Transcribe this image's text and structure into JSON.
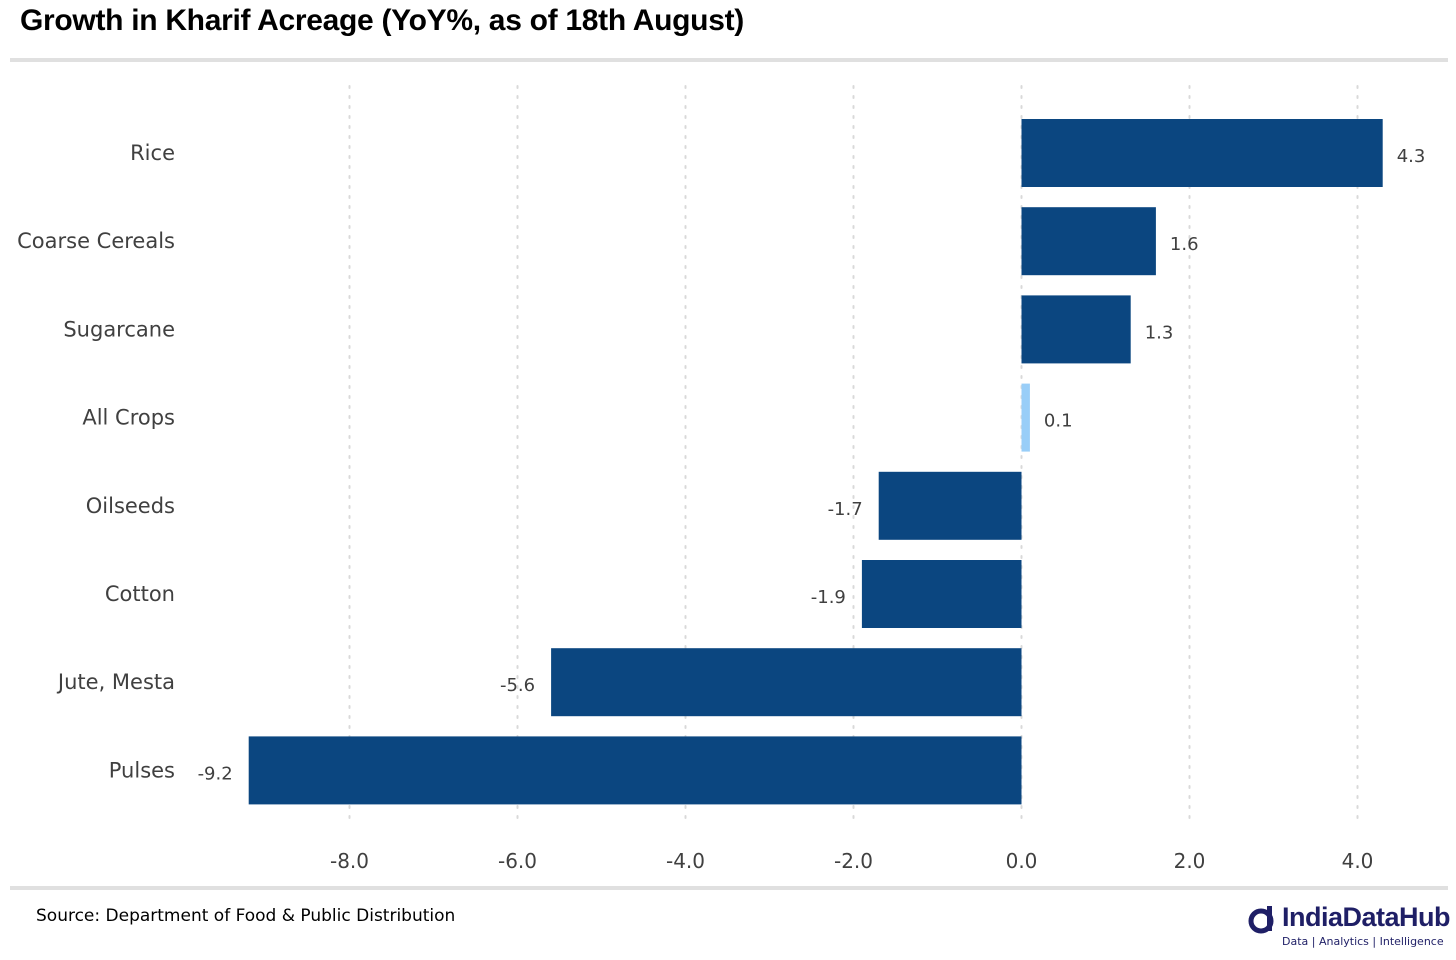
{
  "title": "Growth in Kharif Acreage (YoY%, as of 18th August)",
  "source": "Source: Department of Food & Public Distribution",
  "brand": {
    "name": "IndiaDataHub",
    "tagline": "Data | Analytics | Intelligence",
    "icon": "indiadatahub-logo-icon",
    "color": "#1f1f66"
  },
  "colors": {
    "bar": "#0b4680",
    "highlight": "#99cef8",
    "grid": "#d9d9d9",
    "rule": "#e0e0e0"
  },
  "chart_data": {
    "type": "bar",
    "orientation": "horizontal",
    "title": "Growth in Kharif Acreage (YoY%, as of 18th August)",
    "categories": [
      "Rice",
      "Coarse Cereals",
      "Sugarcane",
      "All Crops",
      "Oilseeds",
      "Cotton",
      "Jute, Mesta",
      "Pulses"
    ],
    "values": [
      4.3,
      1.6,
      1.3,
      0.1,
      -1.7,
      -1.9,
      -5.6,
      -9.2
    ],
    "value_labels": [
      "4.3",
      "1.6",
      "1.3",
      "0.1",
      "-1.7",
      "-1.9",
      "-5.6",
      "-9.2"
    ],
    "highlight_category": "All Crops",
    "xlim": [
      -9.2,
      4.3
    ],
    "xticks": [
      -8,
      -6,
      -4,
      -2,
      0,
      2,
      4
    ],
    "xtick_labels": [
      "-8.0",
      "-6.0",
      "-4.0",
      "-2.0",
      "0.0",
      "2.0",
      "4.0"
    ],
    "xlabel": "",
    "ylabel": "",
    "grid": "vertical dotted",
    "legend": "none"
  }
}
